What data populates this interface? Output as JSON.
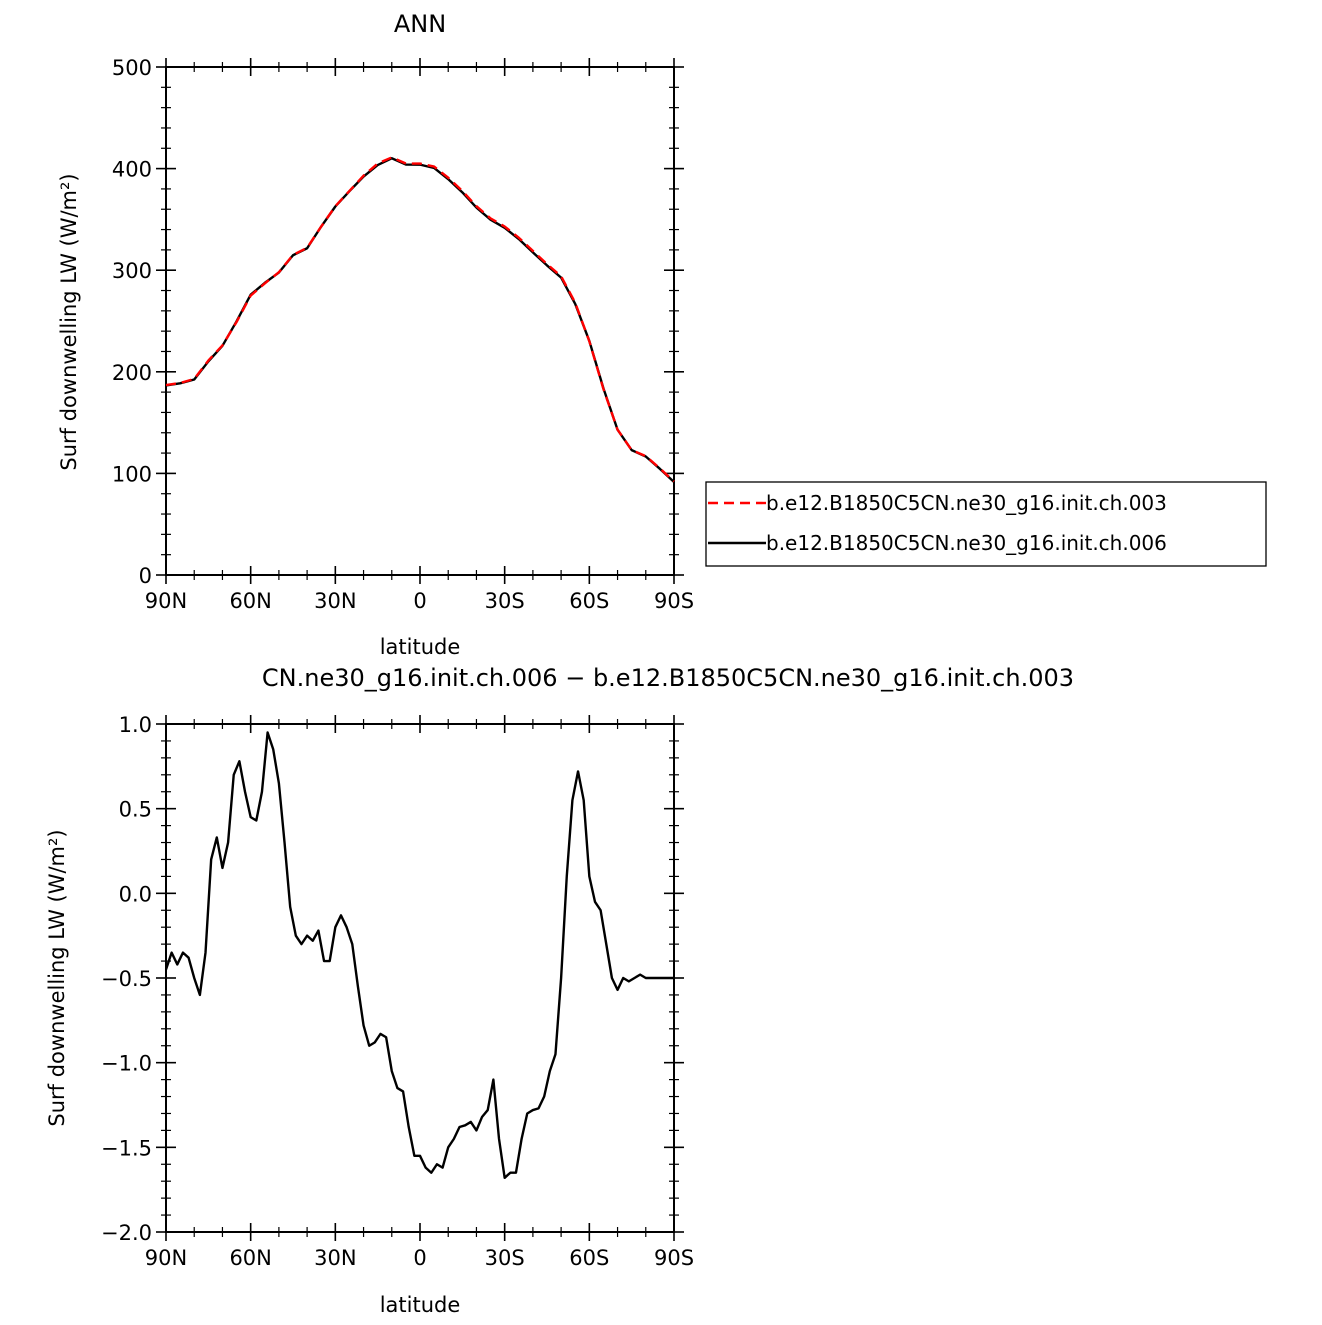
{
  "colors": {
    "series_003": "#ff0000",
    "series_006": "#000000",
    "axes": "#000000",
    "background": "#ffffff"
  },
  "chart_data": [
    {
      "type": "line",
      "title": "ANN",
      "xlabel": "latitude",
      "ylabel": "Surf downwelling LW (W/m²)",
      "xlim": [
        90,
        -90
      ],
      "ylim": [
        0,
        500
      ],
      "xticks": [
        90,
        60,
        30,
        0,
        -30,
        -60,
        -90
      ],
      "xtick_labels": [
        "90N",
        "60N",
        "30N",
        "0",
        "30S",
        "60S",
        "90S"
      ],
      "yticks": [
        0,
        100,
        200,
        300,
        400,
        500
      ],
      "ytick_labels": [
        "0",
        "100",
        "200",
        "300",
        "400",
        "500"
      ],
      "grid": false,
      "legend_position": "right, outside",
      "x": [
        90,
        85,
        80,
        75,
        70,
        65,
        60,
        55,
        50,
        45,
        40,
        35,
        30,
        25,
        20,
        15,
        10,
        5,
        0,
        -5,
        -10,
        -15,
        -20,
        -25,
        -30,
        -35,
        -40,
        -45,
        -50,
        -55,
        -60,
        -65,
        -70,
        -75,
        -80,
        -85,
        -90
      ],
      "series": [
        {
          "name": "b.e12.B1850C5CN.ne30_g16.init.ch.003",
          "style": "dashed",
          "color": "#ff0000",
          "values": [
            187,
            189,
            193,
            211,
            226,
            249,
            275,
            287,
            298,
            315,
            322,
            343,
            363,
            378,
            393,
            405,
            411,
            405,
            405,
            402,
            391,
            378,
            363,
            351,
            343,
            332,
            319,
            306,
            294,
            268,
            230,
            183,
            143,
            123,
            117,
            105,
            92
          ]
        },
        {
          "name": "b.e12.B1850C5CN.ne30_g16.init.ch.006",
          "style": "solid",
          "color": "#000000",
          "values": [
            186.6,
            188.7,
            192.4,
            210.2,
            225.6,
            249.7,
            275.9,
            287.5,
            297.7,
            314.7,
            321.6,
            343.0,
            362.7,
            377.8,
            392.2,
            403.5,
            410.2,
            404.0,
            403.9,
            400.6,
            389.6,
            376.6,
            361.6,
            349.7,
            341.7,
            330.7,
            317.5,
            304.7,
            292.7,
            266.8,
            230.4,
            183.7,
            143.0,
            122.9,
            116.6,
            104.5,
            91.5
          ]
        }
      ]
    },
    {
      "type": "line",
      "title": "CN.ne30_g16.init.ch.006 − b.e12.B1850C5CN.ne30_g16.init.ch.003",
      "xlabel": "latitude",
      "ylabel": "Surf downwelling LW (W/m²)",
      "xlim": [
        90,
        -90
      ],
      "ylim": [
        -2.0,
        1.0
      ],
      "xticks": [
        90,
        60,
        30,
        0,
        -30,
        -60,
        -90
      ],
      "xtick_labels": [
        "90N",
        "60N",
        "30N",
        "0",
        "30S",
        "60S",
        "90S"
      ],
      "yticks": [
        -2.0,
        -1.5,
        -1.0,
        -0.5,
        0.0,
        0.5,
        1.0
      ],
      "ytick_labels": [
        "−2.0",
        "−1.5",
        "−1.0",
        "−0.5",
        "0.0",
        "0.5",
        "1.0"
      ],
      "grid": false,
      "x": [
        90,
        88,
        86,
        84,
        82,
        80,
        78,
        76,
        74,
        72,
        70,
        68,
        66,
        64,
        62,
        60,
        58,
        56,
        54,
        52,
        50,
        48,
        46,
        44,
        42,
        40,
        38,
        36,
        34,
        32,
        30,
        28,
        26,
        24,
        22,
        20,
        18,
        16,
        14,
        12,
        10,
        8,
        6,
        4,
        2,
        0,
        -2,
        -4,
        -6,
        -8,
        -10,
        -12,
        -14,
        -16,
        -18,
        -20,
        -22,
        -24,
        -26,
        -28,
        -30,
        -32,
        -34,
        -36,
        -38,
        -40,
        -42,
        -44,
        -46,
        -48,
        -50,
        -52,
        -54,
        -56,
        -58,
        -60,
        -62,
        -64,
        -66,
        -68,
        -70,
        -72,
        -74,
        -76,
        -78,
        -80,
        -82,
        -84,
        -86,
        -88,
        -90
      ],
      "series": [
        {
          "name": "",
          "color": "#000000",
          "values": [
            -0.45,
            -0.35,
            -0.42,
            -0.35,
            -0.38,
            -0.5,
            -0.6,
            -0.35,
            0.2,
            0.33,
            0.15,
            0.3,
            0.7,
            0.78,
            0.6,
            0.45,
            0.43,
            0.6,
            0.95,
            0.85,
            0.65,
            0.3,
            -0.08,
            -0.25,
            -0.3,
            -0.25,
            -0.28,
            -0.22,
            -0.4,
            -0.4,
            -0.2,
            -0.13,
            -0.2,
            -0.3,
            -0.55,
            -0.78,
            -0.9,
            -0.88,
            -0.83,
            -0.85,
            -1.05,
            -1.15,
            -1.17,
            -1.38,
            -1.55,
            -1.55,
            -1.62,
            -1.65,
            -1.6,
            -1.62,
            -1.5,
            -1.45,
            -1.38,
            -1.37,
            -1.35,
            -1.4,
            -1.32,
            -1.28,
            -1.1,
            -1.45,
            -1.68,
            -1.65,
            -1.65,
            -1.45,
            -1.3,
            -1.28,
            -1.27,
            -1.2,
            -1.05,
            -0.95,
            -0.5,
            0.1,
            0.55,
            0.72,
            0.55,
            0.1,
            -0.05,
            -0.1,
            -0.3,
            -0.5,
            -0.57,
            -0.5,
            -0.52,
            -0.5,
            -0.48,
            -0.5,
            -0.5,
            -0.5,
            -0.5,
            -0.5,
            -0.5
          ]
        }
      ]
    }
  ]
}
